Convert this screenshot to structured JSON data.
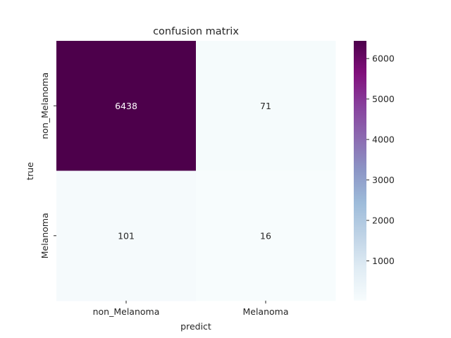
{
  "chart_data": {
    "type": "heatmap",
    "title": "confusion matrix",
    "xlabel": "predict",
    "ylabel": "true",
    "x_categories": [
      "non_Melanoma",
      "Melanoma"
    ],
    "y_categories": [
      "non_Melanoma",
      "Melanoma"
    ],
    "values": [
      [
        6438,
        71
      ],
      [
        101,
        16
      ]
    ],
    "colormap": "BuPu",
    "colorbar": {
      "range": [
        16,
        6438
      ],
      "ticks": [
        1000,
        2000,
        3000,
        4000,
        5000,
        6000
      ]
    }
  }
}
